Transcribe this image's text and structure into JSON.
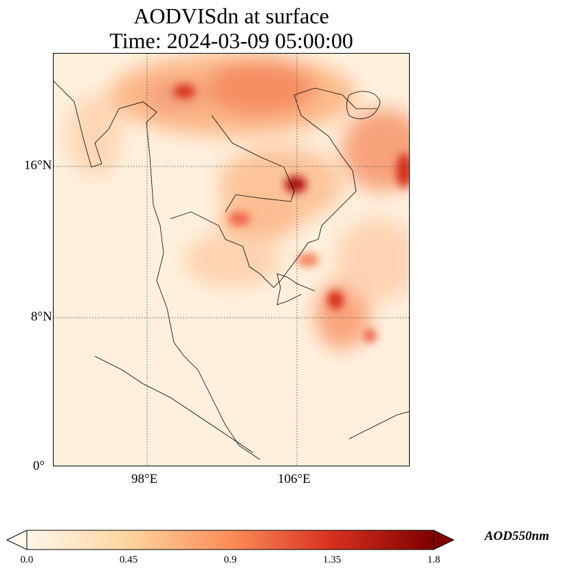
{
  "title": {
    "line1": "AODVISdn at surface",
    "line2": "Time: 2024-03-09 05:00:00"
  },
  "map": {
    "extent_deg": {
      "lon": [
        93,
        112
      ],
      "lat": [
        0,
        22
      ]
    },
    "lat_ticks": [
      {
        "value": 16,
        "label": "16°N"
      },
      {
        "value": 8,
        "label": "8°N"
      },
      {
        "value": 0,
        "label": "0°"
      }
    ],
    "lon_ticks": [
      {
        "value": 98,
        "label": "98°E"
      },
      {
        "value": 106,
        "label": "106°E"
      }
    ]
  },
  "colorbar": {
    "label": "AOD550nm",
    "colormap": "OrRd",
    "range": [
      0.0,
      1.8
    ],
    "extend": "both",
    "ticks": [
      "0.0",
      "0.45",
      "0.9",
      "1.35",
      "1.8"
    ],
    "colors": [
      "#fff7ec",
      "#fdd49e",
      "#fc8d59",
      "#d7301f",
      "#7f0000"
    ]
  }
}
